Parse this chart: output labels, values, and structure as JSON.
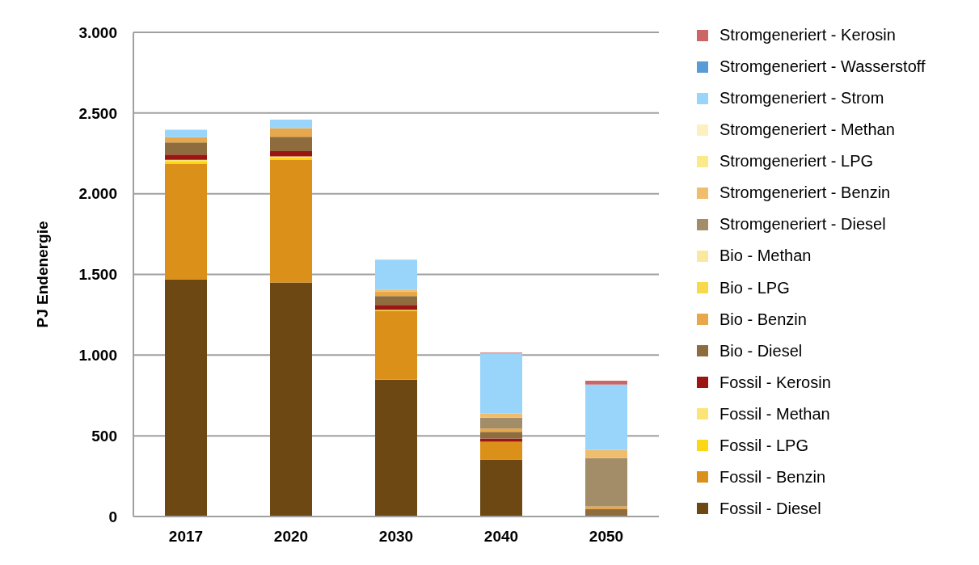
{
  "chart_data": {
    "type": "bar",
    "stacked": true,
    "categories": [
      "2017",
      "2020",
      "2030",
      "2040",
      "2050"
    ],
    "ylabel": "PJ Endenergie",
    "ylim": [
      0,
      3000
    ],
    "yticks": [
      0,
      500,
      {
        "value": 1000,
        "label": "1.000"
      },
      {
        "value": 1500,
        "label": "1.500"
      },
      {
        "value": 2000,
        "label": "2.000"
      },
      {
        "value": 2500,
        "label": "2.500"
      },
      {
        "value": 3000,
        "label": "3.000"
      }
    ],
    "grid": "y",
    "legend": "right",
    "series": [
      {
        "name": "Fossil - Diesel",
        "color": "#6e4812",
        "values": [
          1470,
          1450,
          848,
          353,
          0
        ]
      },
      {
        "name": "Fossil - Benzin",
        "color": "#db9019",
        "values": [
          714,
          761,
          426,
          110,
          0
        ]
      },
      {
        "name": "Fossil - LPG",
        "color": "#fbd716",
        "values": [
          18,
          15,
          7,
          0,
          0
        ]
      },
      {
        "name": "Fossil - Methan",
        "color": "#fce576",
        "values": [
          8,
          5,
          0,
          0,
          0
        ]
      },
      {
        "name": "Fossil - Kerosin",
        "color": "#9b1512",
        "values": [
          33,
          33,
          30,
          20,
          0
        ]
      },
      {
        "name": "Bio - Diesel",
        "color": "#8e6c3e",
        "values": [
          75,
          89,
          55,
          42,
          45
        ]
      },
      {
        "name": "Bio - Benzin",
        "color": "#e6a84a",
        "values": [
          32,
          54,
          28,
          20,
          17
        ]
      },
      {
        "name": "Bio - LPG",
        "color": "#f8d94a",
        "values": [
          0,
          0,
          0,
          0,
          0
        ]
      },
      {
        "name": "Bio - Methan",
        "color": "#fbe8a0",
        "values": [
          0,
          0,
          0,
          0,
          0
        ]
      },
      {
        "name": "Stromgeneriert - Diesel",
        "color": "#a38c68",
        "values": [
          0,
          0,
          0,
          67,
          300
        ]
      },
      {
        "name": "Stromgeneriert - Benzin",
        "color": "#f0bd6c",
        "values": [
          0,
          0,
          12,
          25,
          50
        ]
      },
      {
        "name": "Stromgeneriert - LPG",
        "color": "#fce98a",
        "values": [
          0,
          0,
          0,
          0,
          0
        ]
      },
      {
        "name": "Stromgeneriert - Methan",
        "color": "#fdf0c0",
        "values": [
          0,
          0,
          0,
          0,
          0
        ]
      },
      {
        "name": "Stromgeneriert - Strom",
        "color": "#99d5fa",
        "values": [
          47,
          52,
          186,
          373,
          405
        ]
      },
      {
        "name": "Stromgeneriert - Wasserstoff",
        "color": "#5b9bd5",
        "values": [
          0,
          0,
          0,
          0,
          0
        ]
      },
      {
        "name": "Stromgeneriert - Kerosin",
        "color": "#cc6666",
        "values": [
          0,
          0,
          0,
          5,
          25
        ]
      }
    ]
  }
}
